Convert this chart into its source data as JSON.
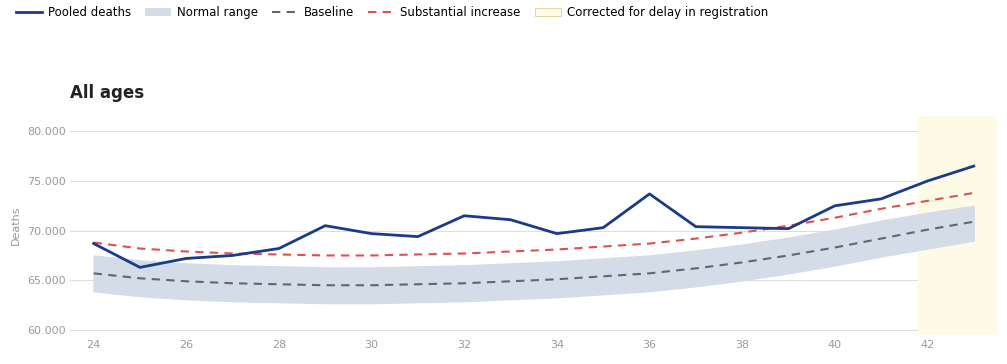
{
  "title": "All ages",
  "xlabel": "",
  "ylabel": "Deaths",
  "xlim": [
    23.5,
    43.5
  ],
  "ylim": [
    59500,
    81500
  ],
  "xticks": [
    24,
    26,
    28,
    30,
    32,
    34,
    36,
    38,
    40,
    42
  ],
  "yticks": [
    60000,
    65000,
    70000,
    75000,
    80000
  ],
  "ytick_labels": [
    "60.000",
    "65.000",
    "70.000",
    "75.000",
    "80.000"
  ],
  "background_color": "#ffffff",
  "pooled_x": [
    24,
    25,
    26,
    27,
    28,
    29,
    30,
    31,
    32,
    33,
    34,
    35,
    36,
    37,
    38,
    39,
    40,
    41,
    42,
    43
  ],
  "pooled_y": [
    68700,
    66300,
    67200,
    67500,
    68200,
    70500,
    69700,
    69400,
    71500,
    71100,
    69700,
    70300,
    73700,
    70400,
    70300,
    70200,
    72500,
    73200,
    75000,
    76500
  ],
  "baseline_x": [
    24,
    25,
    26,
    27,
    28,
    29,
    30,
    31,
    32,
    33,
    34,
    35,
    36,
    37,
    38,
    39,
    40,
    41,
    42,
    43
  ],
  "baseline_y": [
    65700,
    65200,
    64900,
    64700,
    64600,
    64500,
    64500,
    64600,
    64700,
    64900,
    65100,
    65400,
    65700,
    66200,
    66800,
    67500,
    68300,
    69200,
    70100,
    70900
  ],
  "normal_upper": [
    67500,
    67000,
    66700,
    66500,
    66400,
    66300,
    66300,
    66400,
    66500,
    66700,
    66900,
    67200,
    67500,
    68000,
    68600,
    69300,
    70100,
    71000,
    71800,
    72500
  ],
  "normal_lower": [
    63900,
    63400,
    63100,
    62900,
    62800,
    62700,
    62700,
    62800,
    62900,
    63100,
    63300,
    63600,
    63900,
    64400,
    65000,
    65700,
    66500,
    67400,
    68200,
    69000
  ],
  "substantial_x": [
    24,
    25,
    26,
    27,
    28,
    29,
    30,
    31,
    32,
    33,
    34,
    35,
    36,
    37,
    38,
    39,
    40,
    41,
    42,
    43
  ],
  "substantial_y": [
    68800,
    68200,
    67900,
    67700,
    67600,
    67500,
    67500,
    67600,
    67700,
    67900,
    68100,
    68400,
    68700,
    69200,
    69800,
    70500,
    71300,
    72200,
    73000,
    73800
  ],
  "yellow_region_start": 41.8,
  "yellow_region_end": 43.6,
  "pooled_color": "#1a3a8a",
  "baseline_color": "#666666",
  "substantial_color": "#e05050",
  "normal_range_color": "#d4dce8",
  "yellow_color": "#fdfbe6",
  "title_fontsize": 12,
  "axis_label_fontsize": 8,
  "tick_fontsize": 8,
  "legend_fontsize": 8.5
}
